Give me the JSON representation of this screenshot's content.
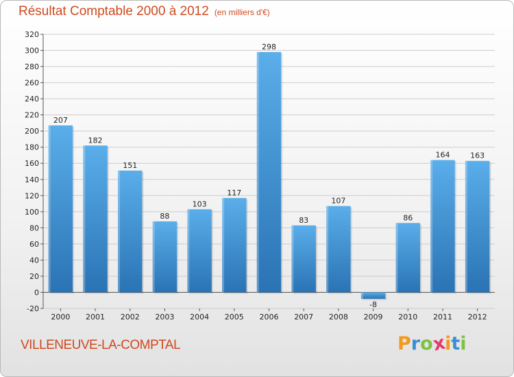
{
  "chart_data": {
    "type": "bar",
    "title": "Résultat Comptable 2000 à 2012",
    "subtitle": "(en milliers d'€)",
    "categories": [
      "2000",
      "2001",
      "2002",
      "2003",
      "2004",
      "2005",
      "2006",
      "2007",
      "2008",
      "2009",
      "2010",
      "2011",
      "2012"
    ],
    "values": [
      207,
      182,
      151,
      88,
      103,
      117,
      298,
      83,
      107,
      -8,
      86,
      164,
      163
    ],
    "ylim": [
      -20,
      320
    ],
    "yticks": [
      -20,
      0,
      20,
      40,
      60,
      80,
      100,
      120,
      140,
      160,
      180,
      200,
      220,
      240,
      260,
      280,
      300,
      320
    ],
    "grid": true,
    "xlabel": "",
    "ylabel": "",
    "bar_color": "#3f93d6",
    "bar_color_light": "#5aaeea",
    "bar_color_dark": "#2a73b4"
  },
  "footer": {
    "commune": "VILLENEUVE-LA-COMPTAL",
    "logo_letters": [
      "P",
      "r",
      "o",
      "x",
      "i",
      "t",
      "i"
    ],
    "logo_colors": [
      "#f29a1e",
      "#3a8fd4",
      "#7cc242",
      "#e63a6e",
      "#f29a1e",
      "#3a8fd4",
      "#7cc242"
    ]
  },
  "colors": {
    "title": "#d0481f",
    "grid": "#cccccc"
  }
}
